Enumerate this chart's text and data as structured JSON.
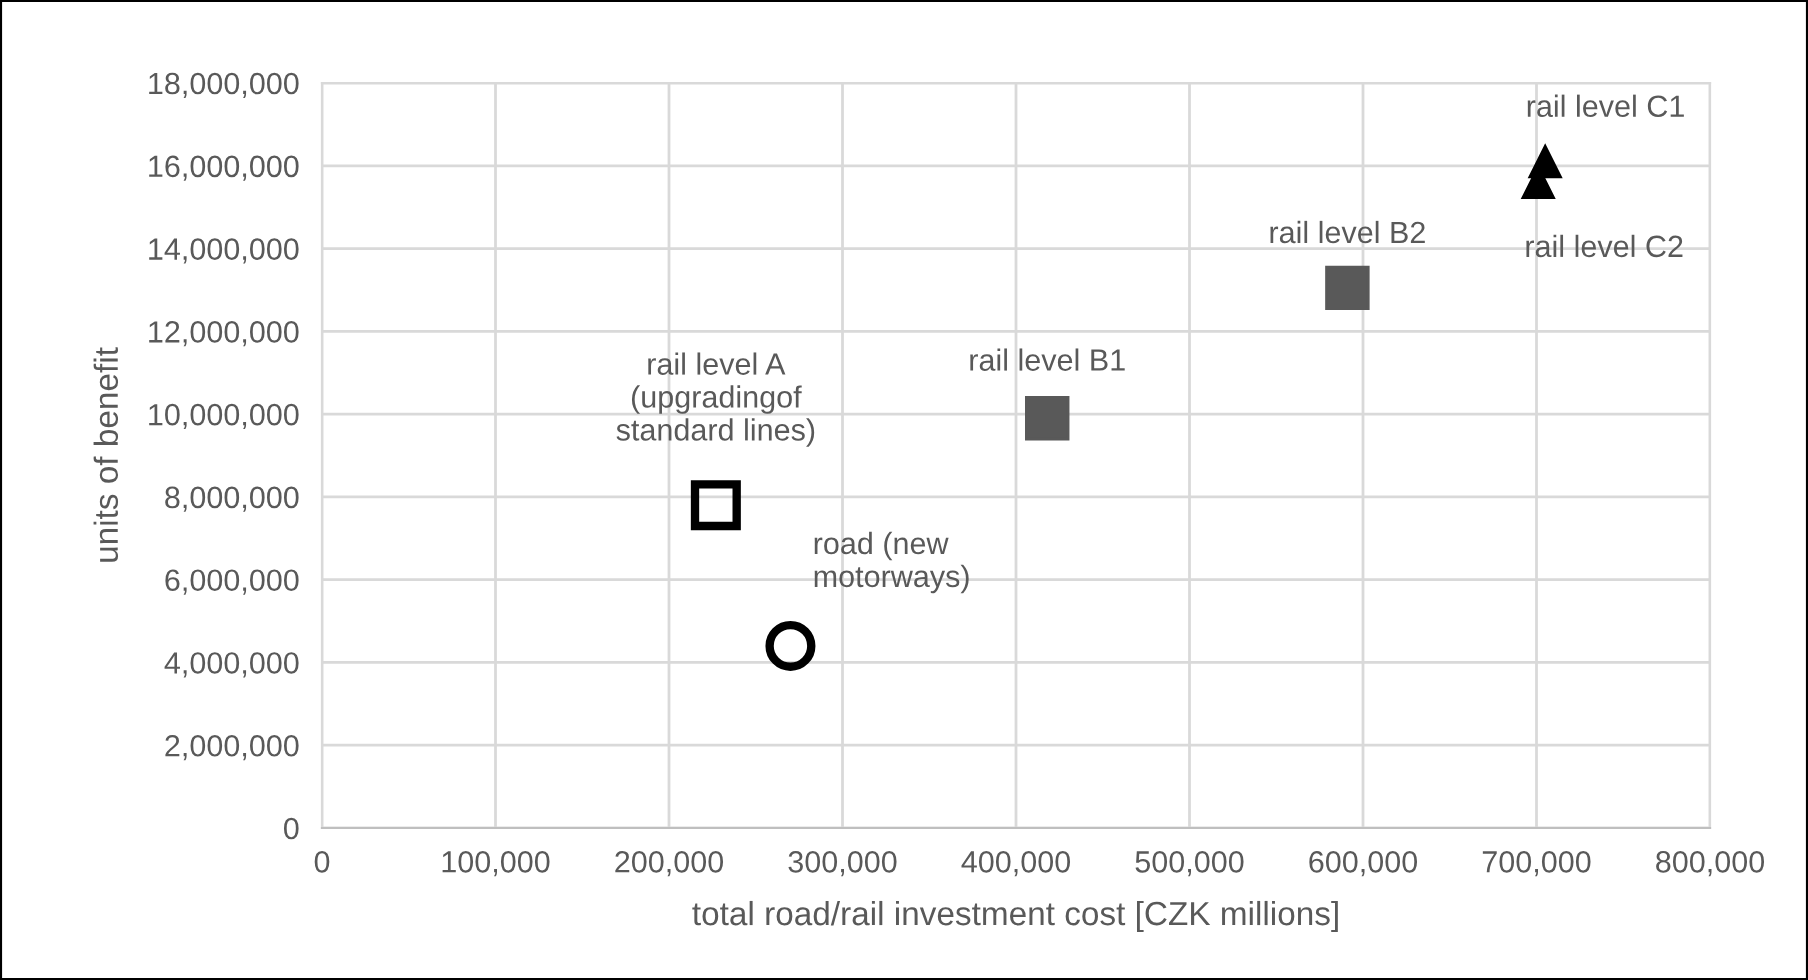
{
  "chart_data": {
    "type": "scatter",
    "xlabel": "total road/rail investment cost [CZK millions]",
    "ylabel": "units of benefit",
    "xlim": [
      0,
      800000
    ],
    "xticks": [
      {
        "value": 0,
        "label": "0"
      },
      {
        "value": 100000,
        "label": "100,000"
      },
      {
        "value": 200000,
        "label": "200,000"
      },
      {
        "value": 300000,
        "label": "300,000"
      },
      {
        "value": 400000,
        "label": "400,000"
      },
      {
        "value": 500000,
        "label": "500,000"
      },
      {
        "value": 600000,
        "label": "600,000"
      },
      {
        "value": 700000,
        "label": "700,000"
      },
      {
        "value": 800000,
        "label": "800,000"
      }
    ],
    "ylim": [
      0,
      18000000
    ],
    "yticks": [
      {
        "value": 0,
        "label": "0"
      },
      {
        "value": 2000000,
        "label": "2,000,000"
      },
      {
        "value": 4000000,
        "label": "4,000,000"
      },
      {
        "value": 6000000,
        "label": "6,000,000"
      },
      {
        "value": 8000000,
        "label": "8,000,000"
      },
      {
        "value": 10000000,
        "label": "10,000,000"
      },
      {
        "value": 12000000,
        "label": "12,000,000"
      },
      {
        "value": 14000000,
        "label": "14,000,000"
      },
      {
        "value": 16000000,
        "label": "16,000,000"
      },
      {
        "value": 18000000,
        "label": "18,000,000"
      }
    ],
    "grid": true,
    "legend": false,
    "series": [
      {
        "name": "road (new\nmotorways)",
        "marker": "circle",
        "color": "#000000",
        "x": [
          270000
        ],
        "values": [
          4400000
        ]
      },
      {
        "name": "rail level A\n(upgradingof\nstandard lines)",
        "marker": "square",
        "color": "#000000",
        "x": [
          227000
        ],
        "values": [
          7800000
        ]
      },
      {
        "name": "rail level B1",
        "marker": "square",
        "color": "#595959",
        "x": [
          418000
        ],
        "values": [
          9900000
        ]
      },
      {
        "name": "rail level B2",
        "marker": "square",
        "color": "#595959",
        "x": [
          591000
        ],
        "values": [
          13050000
        ]
      },
      {
        "name": "rail level C1",
        "marker": "triangle",
        "color": "#000000",
        "x": [
          705000
        ],
        "values": [
          16100000
        ]
      },
      {
        "name": "rail level C2",
        "marker": "triangle",
        "color": "#000000",
        "x": [
          701000
        ],
        "values": [
          15600000
        ]
      }
    ]
  }
}
